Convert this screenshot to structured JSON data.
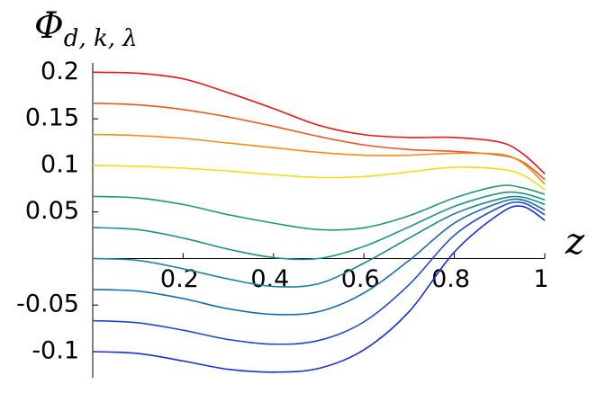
{
  "chart_data": {
    "type": "line",
    "ylabel": "Φ",
    "ylabel_sub": "d, k, λ",
    "xlabel": "z",
    "x": [
      0,
      0.1,
      0.2,
      0.3,
      0.4,
      0.5,
      0.6,
      0.7,
      0.8,
      0.9,
      0.95,
      1
    ],
    "series": [
      {
        "color": "#e8161b",
        "values": [
          0.2,
          0.199,
          0.193,
          0.178,
          0.161,
          0.143,
          0.133,
          0.13,
          0.13,
          0.125,
          0.113,
          0.091
        ]
      },
      {
        "color": "#ee5524",
        "values": [
          0.1667,
          0.165,
          0.16,
          0.152,
          0.142,
          0.131,
          0.122,
          0.117,
          0.115,
          0.111,
          0.104,
          0.085
        ]
      },
      {
        "color": "#f28c1c",
        "values": [
          0.1333,
          0.132,
          0.129,
          0.124,
          0.119,
          0.114,
          0.111,
          0.111,
          0.113,
          0.112,
          0.103,
          0.08
        ]
      },
      {
        "color": "#f3dc1c",
        "values": [
          0.1,
          0.099,
          0.097,
          0.094,
          0.09,
          0.087,
          0.088,
          0.093,
          0.098,
          0.096,
          0.09,
          0.074
        ]
      },
      {
        "color": "#1b9a74",
        "values": [
          0.0667,
          0.065,
          0.058,
          0.047,
          0.038,
          0.031,
          0.033,
          0.046,
          0.065,
          0.078,
          0.076,
          0.069
        ]
      },
      {
        "color": "#1c9484",
        "values": [
          0.0333,
          0.031,
          0.022,
          0.01,
          0.001,
          0.0,
          0.013,
          0.034,
          0.056,
          0.07,
          0.07,
          0.063
        ]
      },
      {
        "color": "#1d8596",
        "values": [
          0,
          -0.002,
          -0.011,
          -0.022,
          -0.03,
          -0.027,
          -0.005,
          0.022,
          0.048,
          0.064,
          0.066,
          0.058
        ]
      },
      {
        "color": "#1c68ae",
        "values": [
          -0.0333,
          -0.035,
          -0.043,
          -0.054,
          -0.06,
          -0.057,
          -0.037,
          -0.002,
          0.038,
          0.06,
          0.063,
          0.052
        ]
      },
      {
        "color": "#1c4cc4",
        "values": [
          -0.0667,
          -0.069,
          -0.077,
          -0.087,
          -0.092,
          -0.088,
          -0.068,
          -0.028,
          0.025,
          0.055,
          0.06,
          0.047
        ]
      },
      {
        "color": "#1a2ed8",
        "values": [
          -0.1,
          -0.102,
          -0.11,
          -0.119,
          -0.122,
          -0.118,
          -0.098,
          -0.057,
          0.007,
          0.048,
          0.056,
          0.041
        ]
      }
    ],
    "xlim": [
      0,
      1
    ],
    "xticks": [
      0.2,
      0.4,
      0.6,
      0.8,
      1
    ],
    "ylim": [
      -0.128,
      0.21
    ],
    "yticks": [
      0.2,
      0.15,
      0.1,
      0.05,
      -0.05,
      -0.1
    ]
  }
}
